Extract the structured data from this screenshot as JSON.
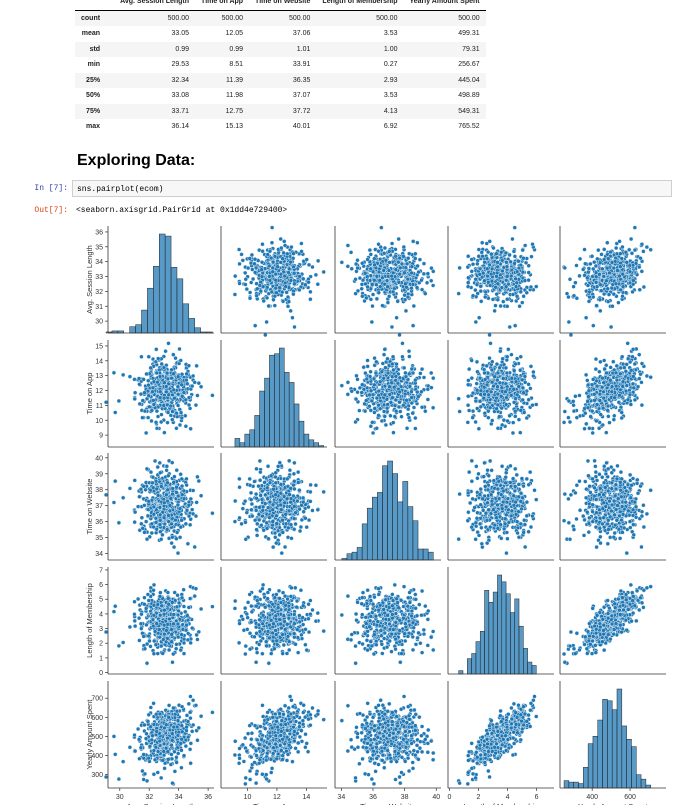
{
  "describe_table": {
    "columns": [
      "",
      "Avg. Session Length",
      "Time on App",
      "Time on Website",
      "Length of Membership",
      "Yearly Amount Spent"
    ],
    "rows": [
      [
        "count",
        "500.00",
        "500.00",
        "500.00",
        "500.00",
        "500.00"
      ],
      [
        "mean",
        "33.05",
        "12.05",
        "37.06",
        "3.53",
        "499.31"
      ],
      [
        "std",
        "0.99",
        "0.99",
        "1.01",
        "1.00",
        "79.31"
      ],
      [
        "min",
        "29.53",
        "8.51",
        "33.91",
        "0.27",
        "256.67"
      ],
      [
        "25%",
        "32.34",
        "11.39",
        "36.35",
        "2.93",
        "445.04"
      ],
      [
        "50%",
        "33.08",
        "11.98",
        "37.07",
        "3.53",
        "498.89"
      ],
      [
        "75%",
        "33.71",
        "12.75",
        "37.72",
        "4.13",
        "549.31"
      ],
      [
        "max",
        "36.14",
        "15.13",
        "40.01",
        "6.92",
        "765.52"
      ]
    ]
  },
  "heading": "Exploring Data:",
  "cell": {
    "in_prompt": "In [7]:",
    "code": "sns.pairplot(ecom)",
    "out_prompt": "Out[7]:",
    "output": "<seaborn.axisgrid.PairGrid at 0x1dd4e729400>"
  },
  "chart_data": {
    "type": "scatter",
    "kind": "pairplot",
    "diagonal": "histogram",
    "color": "#1f77b4",
    "variables": [
      "Avg. Session Length",
      "Time on App",
      "Time on Website",
      "Length of Membership",
      "Yearly Amount Spent"
    ],
    "axis_ranges": [
      [
        29.2,
        36.4
      ],
      [
        8.2,
        15.4
      ],
      [
        33.6,
        40.3
      ],
      [
        -0.1,
        7.2
      ],
      [
        230,
        790
      ]
    ],
    "y_ticks": [
      [
        "30",
        "31",
        "32",
        "33",
        "34",
        "35",
        "36"
      ],
      [
        "9",
        "10",
        "11",
        "12",
        "13",
        "14",
        "15"
      ],
      [
        "34",
        "35",
        "36",
        "37",
        "38",
        "39",
        "40"
      ],
      [
        "0",
        "1",
        "2",
        "3",
        "4",
        "5",
        "6",
        "7"
      ],
      [
        "300",
        "400",
        "500",
        "600",
        "700"
      ]
    ],
    "x_ticks": [
      [
        "30",
        "32",
        "34",
        "36"
      ],
      [
        "10",
        "12",
        "14"
      ],
      [
        "34",
        "36",
        "38",
        "40"
      ],
      [
        "0",
        "2",
        "4",
        "6"
      ],
      [
        "400",
        "600"
      ]
    ],
    "n_points": 500,
    "grid": false
  }
}
